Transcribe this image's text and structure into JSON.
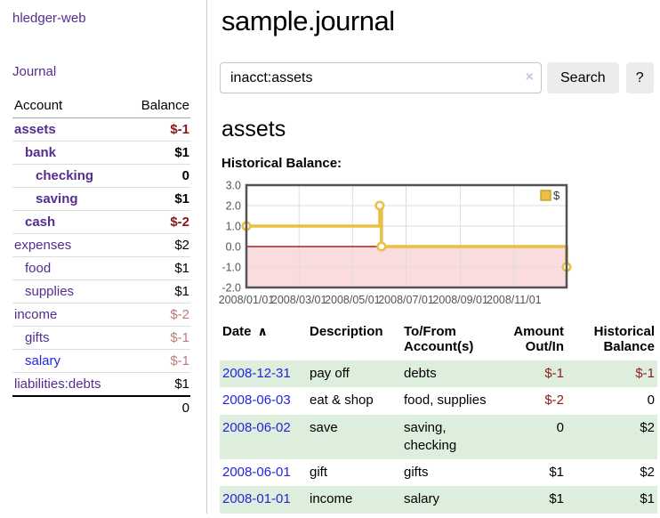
{
  "app": {
    "brand": "hledger-web",
    "nav_journal": "Journal"
  },
  "sidebar": {
    "header": {
      "account": "Account",
      "balance": "Balance"
    },
    "rows": [
      {
        "name": "assets",
        "balance": "$-1",
        "depth": 1,
        "inacct": true,
        "neg": "strong"
      },
      {
        "name": "bank",
        "balance": "$1",
        "depth": 2,
        "inacct": true,
        "neg": "none"
      },
      {
        "name": "checking",
        "balance": "0",
        "depth": 3,
        "inacct": true,
        "neg": "none"
      },
      {
        "name": "saving",
        "balance": "$1",
        "depth": 3,
        "inacct": true,
        "neg": "none"
      },
      {
        "name": "cash",
        "balance": "$-2",
        "depth": 2,
        "inacct": true,
        "neg": "strong"
      },
      {
        "name": "expenses",
        "balance": "$2",
        "depth": 1,
        "inacct": false,
        "neg": "none"
      },
      {
        "name": "food",
        "balance": "$1",
        "depth": 2,
        "inacct": false,
        "neg": "none"
      },
      {
        "name": "supplies",
        "balance": "$1",
        "depth": 2,
        "inacct": false,
        "neg": "none"
      },
      {
        "name": "income",
        "balance": "$-2",
        "depth": 1,
        "inacct": false,
        "neg": "pale"
      },
      {
        "name": "gifts",
        "balance": "$-1",
        "depth": 2,
        "inacct": false,
        "neg": "pale"
      },
      {
        "name": "salary",
        "balance": "$-1",
        "depth": 2,
        "inacct": false,
        "neg": "pale",
        "link": "blue"
      },
      {
        "name": "liabilities:debts",
        "balance": "$1",
        "depth": 1,
        "inacct": false,
        "neg": "none"
      }
    ],
    "total": "0"
  },
  "header": {
    "title": "sample.journal"
  },
  "search": {
    "value": "inacct:assets",
    "clear_icon": "×",
    "button_label": "Search",
    "help_label": "?"
  },
  "account_page": {
    "title": "assets",
    "chart_label": "Historical Balance:"
  },
  "chart_data": {
    "type": "line",
    "step": true,
    "title": "Historical Balance",
    "series": [
      {
        "name": "$",
        "color": "#e9c045",
        "points": [
          [
            "2008/01/01",
            1
          ],
          [
            "2008/06/01",
            2
          ],
          [
            "2008/06/03",
            0
          ],
          [
            "2008/12/31",
            -1
          ]
        ]
      }
    ],
    "x_ticks": [
      "2008/01/01",
      "2008/03/01",
      "2008/05/01",
      "2008/07/01",
      "2008/09/01",
      "2008/11/01"
    ],
    "y_ticks": [
      3.0,
      2.0,
      1.0,
      0.0,
      -1.0,
      -2.0
    ],
    "xlim": [
      "2008/01/01",
      "2008/12/31"
    ],
    "ylim": [
      -2,
      3
    ],
    "grid": true,
    "legend": {
      "label": "$",
      "position": "top-right"
    },
    "negative_region_color": "#fbdcdc",
    "zero_line_color": "#8b0000",
    "axis_color": "#545454"
  },
  "register": {
    "columns": [
      "Date",
      "Description",
      "To/From Account(s)",
      "Amount Out/In",
      "Historical Balance"
    ],
    "sort_asc_icon": "∧",
    "rows": [
      {
        "date": "2008-12-31",
        "description": "pay off",
        "accounts": "debts",
        "amount": "$-1",
        "balance": "$-1",
        "amount_neg": true,
        "balance_neg": true
      },
      {
        "date": "2008-06-03",
        "description": "eat & shop",
        "accounts": "food, supplies",
        "amount": "$-2",
        "balance": "0",
        "amount_neg": true,
        "balance_neg": false
      },
      {
        "date": "2008-06-02",
        "description": "save",
        "accounts": "saving, checking",
        "amount": "0",
        "balance": "$2",
        "amount_neg": false,
        "balance_neg": false
      },
      {
        "date": "2008-06-01",
        "description": "gift",
        "accounts": "gifts",
        "amount": "$1",
        "balance": "$2",
        "amount_neg": false,
        "balance_neg": false
      },
      {
        "date": "2008-01-01",
        "description": "income",
        "accounts": "salary",
        "amount": "$1",
        "balance": "$1",
        "amount_neg": false,
        "balance_neg": false
      }
    ]
  }
}
